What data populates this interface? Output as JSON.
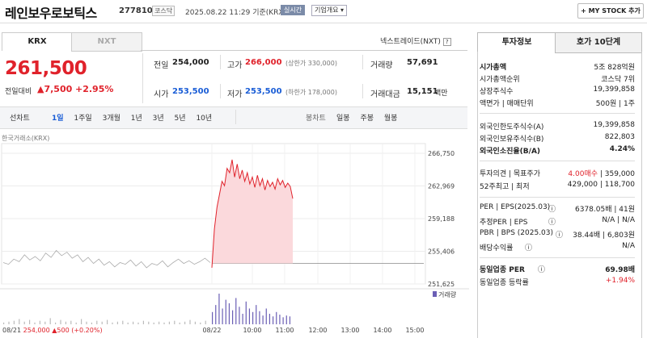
{
  "header": {
    "stock_name": "레인보우로보틱스",
    "stock_code": "277810",
    "market": "코스닥",
    "datetime": "2025.08.22 11:29",
    "basis": "기준(KRX 장중)",
    "live": "실시간",
    "corp_info": "기업개요",
    "my_stock": "MY STOCK 추가"
  },
  "tabs": {
    "krx": "KRX",
    "nxt": "NXT",
    "nextrade": "넥스트레이드(NXT)"
  },
  "price": {
    "current": "261,500",
    "change_label": "전일대비",
    "change": "7,500",
    "change_pct": "+2.95%"
  },
  "stats": {
    "prev_label": "전일",
    "prev": "254,000",
    "high_label": "고가",
    "high": "266,000",
    "high_limit": "(상한가 330,000)",
    "volume_label": "거래량",
    "volume": "57,691",
    "open_label": "시가",
    "open": "253,500",
    "low_label": "저가",
    "low": "253,500",
    "low_limit": "(하한가 178,000)",
    "amount_label": "거래대금",
    "amount": "15,151",
    "amount_unit": "백만"
  },
  "periods": {
    "line": "선차트",
    "items": [
      "1일",
      "1주일",
      "3개월",
      "1년",
      "3년",
      "5년",
      "10년"
    ],
    "candle": "봉차트",
    "candle_items": [
      "일봉",
      "주봉",
      "월봉"
    ]
  },
  "chart_caption": "한국거래소(KRX)",
  "volume_legend": "거래량",
  "footer": {
    "date": "08/21",
    "price": "254,000",
    "change": "500",
    "pct": "(+0.20%)"
  },
  "right_tabs": {
    "info": "투자정보",
    "quote": "호가 10단계"
  },
  "invest": {
    "market_cap_label": "시가총액",
    "market_cap": "5조 828억원",
    "rank_label": "시가총액순위",
    "rank": "코스닥 7위",
    "shares_label": "상장주식수",
    "shares": "19,399,858",
    "par_label": "액면가 | 매매단위",
    "par": "500원 | 1주",
    "foreign_limit_label": "외국인한도주식수(A)",
    "foreign_limit": "19,399,858",
    "foreign_hold_label": "외국인보유주식수(B)",
    "foreign_hold": "822,803",
    "foreign_ratio_label": "외국인소진율(B/A)",
    "foreign_ratio": "4.24%",
    "opinion_label": "투자의견 | 목표주가",
    "opinion": "4.00매수",
    "target": "359,000",
    "w52_label": "52주최고 | 최저",
    "w52_high": "429,000",
    "w52_low": "118,700",
    "per_label": "PER | EPS(2025.03)",
    "per": "6378.05배",
    "eps": "41원",
    "est_label": "추정PER | EPS",
    "est": "N/A | N/A",
    "pbr_label": "PBR | BPS (2025.03)",
    "pbr": "38.44배",
    "bps": "6,803원",
    "div_label": "배당수익률",
    "div": "N/A",
    "sector_per_label": "동일업종 PER",
    "sector_per": "69.98배",
    "sector_rate_label": "동일업종 등락률",
    "sector_rate": "+1.94%"
  },
  "colors": {
    "up": "#e0222b",
    "down": "#1a5dd6",
    "chart_line": "#e0222b",
    "chart_fill": "#fbd9dc",
    "prev_line": "#aaaaaa"
  },
  "chart_data": {
    "type": "line",
    "y_ticks": [
      "266,750",
      "262,969",
      "259,188",
      "255,406",
      "251,625"
    ],
    "y_values": [
      266750,
      262969,
      259188,
      255406,
      251625
    ],
    "ylim": [
      251625,
      266750
    ],
    "x_ticks": [
      "08/22",
      "10:00",
      "11:00",
      "12:00",
      "13:00",
      "14:00",
      "15:00"
    ],
    "prev_day_close": 254000,
    "series": [
      {
        "name": "prev_day",
        "values": [
          254100,
          253900,
          254500,
          254200,
          255000,
          254400,
          254800,
          254300,
          255200,
          254700,
          255500,
          254900,
          255300,
          254600,
          255000,
          254200,
          254700,
          254000,
          254500,
          253800,
          254200,
          253600,
          254100,
          253900,
          254400,
          253700,
          254200,
          253500,
          254000,
          253800,
          254300,
          253600,
          254100,
          254500,
          254000,
          254300,
          253900,
          254200,
          254600,
          254100
        ]
      },
      {
        "name": "today",
        "values": [
          253500,
          258000,
          260500,
          262000,
          263500,
          263000,
          265000,
          264500,
          266000,
          264000,
          265500,
          263800,
          264800,
          263500,
          264500,
          263200,
          264000,
          262800,
          264200,
          263000,
          263800,
          262500,
          263600,
          262900,
          263400,
          262600,
          263800,
          263100,
          263600,
          262800,
          263300,
          262900,
          261500
        ]
      }
    ],
    "volume_values": [
      2,
      3,
      4,
      6,
      3,
      5,
      2,
      4,
      3,
      7,
      2,
      5,
      3,
      4,
      2,
      6,
      3,
      2,
      4,
      3,
      5,
      2,
      3,
      4,
      2,
      3,
      2,
      4,
      3,
      2,
      3,
      2,
      3,
      4,
      2,
      3,
      5,
      3,
      2,
      4,
      14,
      22,
      35,
      18,
      28,
      24,
      16,
      30,
      20,
      12,
      26,
      18,
      14,
      22,
      15,
      10,
      18,
      12,
      9,
      14,
      11,
      8,
      10,
      9
    ]
  }
}
